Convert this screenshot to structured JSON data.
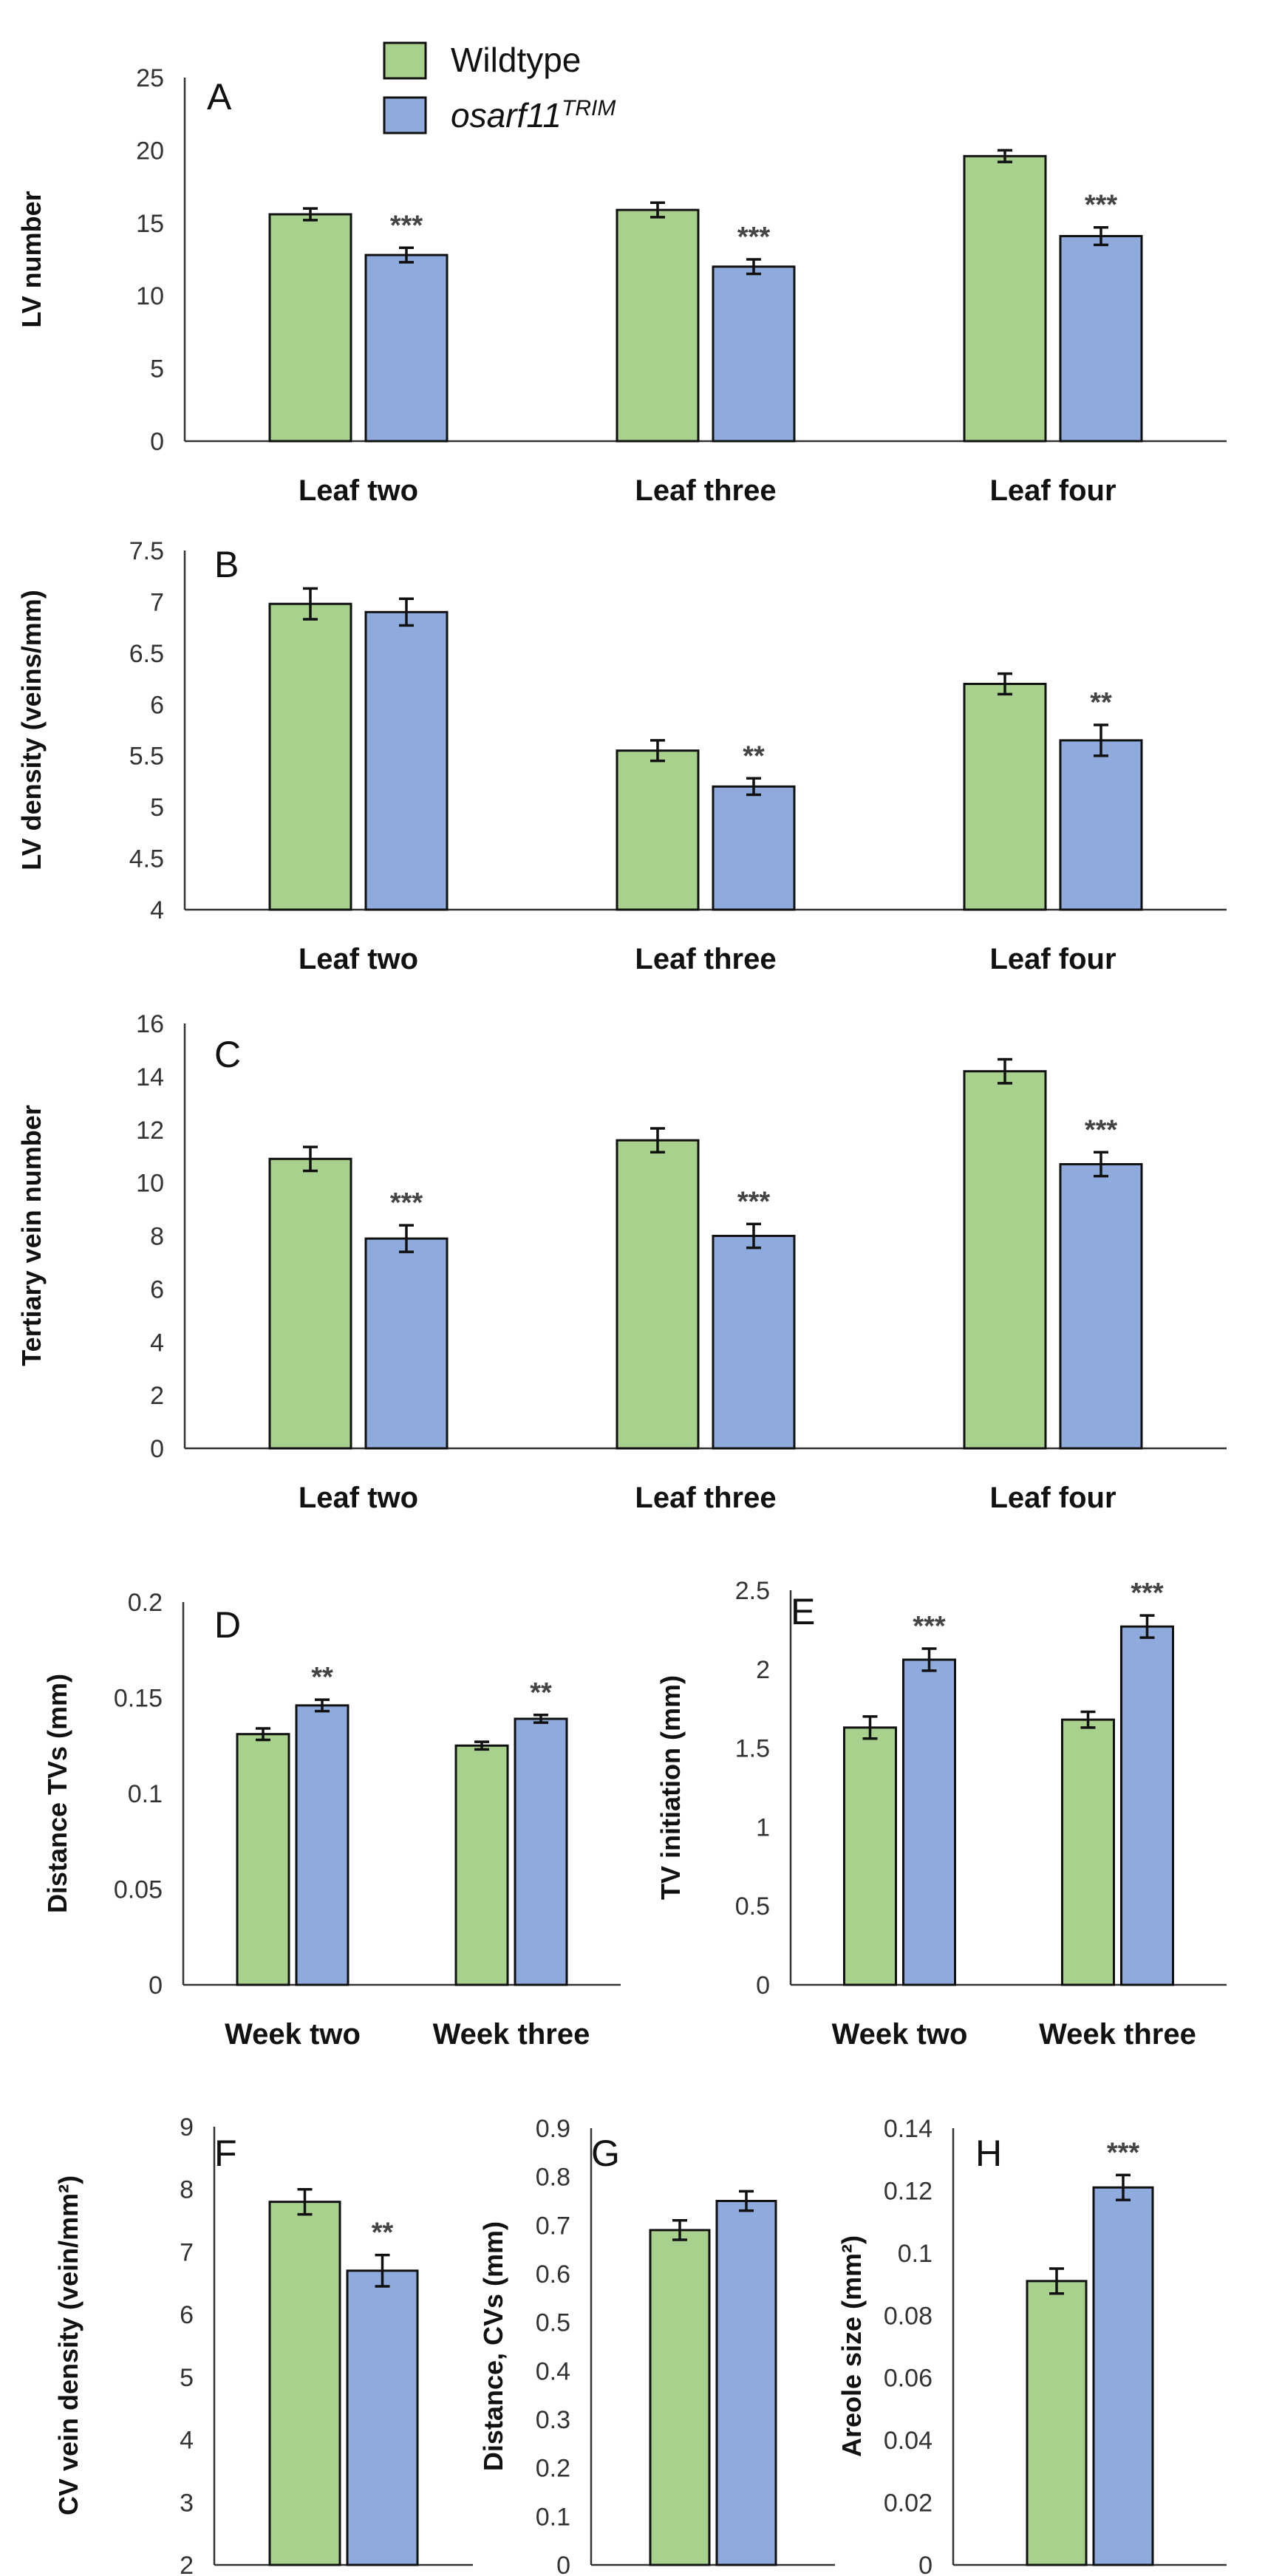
{
  "colors": {
    "wildtype": "#a9d18e",
    "mutant": "#8faadc",
    "edge": "#111111",
    "axis": "#333333"
  },
  "legend": [
    {
      "name": "Wildtype",
      "style": "normal"
    },
    {
      "name": "osarf11",
      "sup": "TRIM",
      "style": "italic"
    }
  ],
  "chart_data": [
    {
      "panel": "A",
      "type": "bar",
      "ylabel": "LV number",
      "ylim": [
        0,
        25
      ],
      "yticks": [
        "0",
        "5",
        "10",
        "15",
        "20",
        "25"
      ],
      "categories": [
        "Leaf two",
        "Leaf three",
        "Leaf four"
      ],
      "series": [
        {
          "name": "Wildtype",
          "values": [
            15.6,
            15.9,
            19.6
          ],
          "errors": [
            0.4,
            0.5,
            0.4
          ]
        },
        {
          "name": "osarf11TRIM",
          "values": [
            12.8,
            12.0,
            14.1
          ],
          "errors": [
            0.5,
            0.5,
            0.6
          ]
        }
      ],
      "significance": [
        "***",
        "***",
        "***"
      ]
    },
    {
      "panel": "B",
      "type": "bar",
      "ylabel": "LV density (veins/mm)",
      "ylim": [
        4,
        7.5
      ],
      "yticks": [
        "4",
        "4.5",
        "5",
        "5.5",
        "6",
        "6.5",
        "7",
        "7.5"
      ],
      "categories": [
        "Leaf two",
        "Leaf three",
        "Leaf four"
      ],
      "series": [
        {
          "name": "Wildtype",
          "values": [
            6.98,
            5.55,
            6.2
          ],
          "errors": [
            0.15,
            0.1,
            0.1
          ]
        },
        {
          "name": "osarf11TRIM",
          "values": [
            6.9,
            5.2,
            5.65
          ],
          "errors": [
            0.13,
            0.08,
            0.15
          ]
        }
      ],
      "significance": [
        "",
        "**",
        "**"
      ]
    },
    {
      "panel": "C",
      "type": "bar",
      "ylabel": "Tertiary vein number",
      "ylim": [
        0,
        16
      ],
      "yticks": [
        "0",
        "2",
        "4",
        "6",
        "8",
        "10",
        "12",
        "14",
        "16"
      ],
      "categories": [
        "Leaf two",
        "Leaf three",
        "Leaf four"
      ],
      "series": [
        {
          "name": "Wildtype",
          "values": [
            10.9,
            11.6,
            14.2
          ],
          "errors": [
            0.45,
            0.45,
            0.45
          ]
        },
        {
          "name": "osarf11TRIM",
          "values": [
            7.9,
            8.0,
            10.7
          ],
          "errors": [
            0.5,
            0.45,
            0.45
          ]
        }
      ],
      "significance": [
        "***",
        "***",
        "***"
      ]
    },
    {
      "panel": "D",
      "type": "bar",
      "ylabel": "Distance TVs (mm)",
      "ylim": [
        0,
        0.2
      ],
      "yticks": [
        "0",
        "0.05",
        "0.1",
        "0.15",
        "0.2"
      ],
      "categories": [
        "Week two",
        "Week three"
      ],
      "series": [
        {
          "name": "Wildtype",
          "values": [
            0.131,
            0.125
          ],
          "errors": [
            0.003,
            0.002
          ]
        },
        {
          "name": "osarf11TRIM",
          "values": [
            0.146,
            0.139
          ],
          "errors": [
            0.003,
            0.002
          ]
        }
      ],
      "significance": [
        "**",
        "**"
      ]
    },
    {
      "panel": "E",
      "type": "bar",
      "ylabel": "TV  initiation (mm)",
      "ylim": [
        0,
        2.5
      ],
      "yticks": [
        "0",
        "0.5",
        "1",
        "1.5",
        "2",
        "2.5"
      ],
      "categories": [
        "Week two",
        "Week three"
      ],
      "series": [
        {
          "name": "Wildtype",
          "values": [
            1.63,
            1.68
          ],
          "errors": [
            0.07,
            0.05
          ]
        },
        {
          "name": "osarf11TRIM",
          "values": [
            2.06,
            2.27
          ],
          "errors": [
            0.07,
            0.07
          ]
        }
      ],
      "significance": [
        "***",
        "***"
      ]
    },
    {
      "panel": "F",
      "type": "bar",
      "ylabel": "CV vein density (vein/mm²)",
      "ylim": [
        2,
        9
      ],
      "yticks": [
        "2",
        "3",
        "4",
        "5",
        "6",
        "7",
        "8",
        "9"
      ],
      "categories": [
        ""
      ],
      "series": [
        {
          "name": "Wildtype",
          "values": [
            7.8
          ],
          "errors": [
            0.2
          ]
        },
        {
          "name": "osarf11TRIM",
          "values": [
            6.7
          ],
          "errors": [
            0.25
          ]
        }
      ],
      "significance": [
        "**"
      ]
    },
    {
      "panel": "G",
      "type": "bar",
      "ylabel": "Distance, CVs (mm)",
      "ylim": [
        0,
        0.9
      ],
      "yticks": [
        "0",
        "0.1",
        "0.2",
        "0.3",
        "0.4",
        "0.5",
        "0.6",
        "0.7",
        "0.8",
        "0.9"
      ],
      "categories": [
        ""
      ],
      "series": [
        {
          "name": "Wildtype",
          "values": [
            0.69
          ],
          "errors": [
            0.02
          ]
        },
        {
          "name": "osarf11TRIM",
          "values": [
            0.75
          ],
          "errors": [
            0.02
          ]
        }
      ],
      "significance": [
        ""
      ]
    },
    {
      "panel": "H",
      "type": "bar",
      "ylabel": "Areole size (mm²)",
      "ylim": [
        0,
        0.14
      ],
      "yticks": [
        "0",
        "0.02",
        "0.04",
        "0.06",
        "0.08",
        "0.1",
        "0.12",
        "0.14"
      ],
      "categories": [
        ""
      ],
      "series": [
        {
          "name": "Wildtype",
          "values": [
            0.091
          ],
          "errors": [
            0.004
          ]
        },
        {
          "name": "osarf11TRIM",
          "values": [
            0.121
          ],
          "errors": [
            0.004
          ]
        }
      ],
      "significance": [
        "***"
      ]
    }
  ]
}
